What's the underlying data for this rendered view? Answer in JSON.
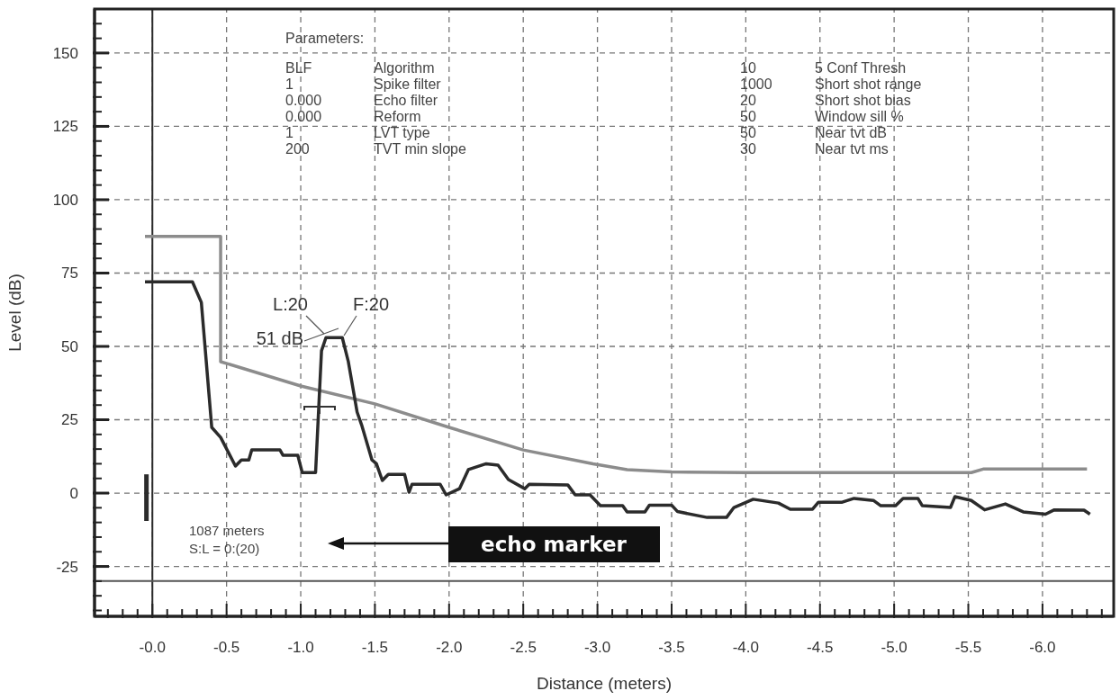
{
  "chart_data": {
    "type": "line",
    "xlabel": "Distance (meters)",
    "ylabel": "Level (dB)",
    "xlim": [
      0.39,
      -6.48
    ],
    "ylim": [
      -42,
      165
    ],
    "xticks": [
      {
        "value": 0.3,
        "label": null
      },
      {
        "value": 0.2,
        "label": null
      },
      {
        "value": 0.1,
        "label": null
      },
      {
        "value": 0,
        "label": "-0.0"
      },
      {
        "value": -0.1,
        "label": null
      },
      {
        "value": -0.2,
        "label": null
      },
      {
        "value": -0.3,
        "label": null
      },
      {
        "value": -0.4,
        "label": null
      },
      -0.5,
      {
        "value": -0.6,
        "label": null
      },
      {
        "value": -0.7,
        "label": null
      },
      {
        "value": -0.8,
        "label": null
      },
      {
        "value": -0.9,
        "label": null
      },
      {
        "value": -1,
        "label": "-1.0"
      },
      {
        "value": -1.1,
        "label": null
      },
      {
        "value": -1.2,
        "label": null
      },
      {
        "value": -1.3,
        "label": null
      },
      {
        "value": -1.4,
        "label": null
      },
      -1.5,
      {
        "value": -1.6,
        "label": null
      },
      {
        "value": -1.7,
        "label": null
      },
      {
        "value": -1.8,
        "label": null
      },
      {
        "value": -1.9,
        "label": null
      },
      {
        "value": -2,
        "label": "-2.0"
      },
      {
        "value": -2.1,
        "label": null
      },
      {
        "value": -2.2,
        "label": null
      },
      {
        "value": -2.3,
        "label": null
      },
      {
        "value": -2.4,
        "label": null
      },
      -2.5,
      {
        "value": -2.6,
        "label": null
      },
      {
        "value": -2.7,
        "label": null
      },
      {
        "value": -2.8,
        "label": null
      },
      {
        "value": -2.9,
        "label": null
      },
      {
        "value": -3,
        "label": "-3.0"
      },
      {
        "value": -3.1,
        "label": null
      },
      {
        "value": -3.2,
        "label": null
      },
      {
        "value": -3.3,
        "label": null
      },
      {
        "value": -3.4,
        "label": null
      },
      -3.5,
      {
        "value": -3.6,
        "label": null
      },
      {
        "value": -3.7,
        "label": null
      },
      {
        "value": -3.8,
        "label": null
      },
      {
        "value": -3.9,
        "label": null
      },
      {
        "value": -4,
        "label": "-4.0"
      },
      {
        "value": -4.1,
        "label": null
      },
      {
        "value": -4.2,
        "label": null
      },
      {
        "value": -4.3,
        "label": null
      },
      {
        "value": -4.4,
        "label": null
      },
      -4.5,
      {
        "value": -4.6,
        "label": null
      },
      {
        "value": -4.7,
        "label": null
      },
      {
        "value": -4.8,
        "label": null
      },
      {
        "value": -4.9,
        "label": null
      },
      {
        "value": -5,
        "label": "-5.0"
      },
      {
        "value": -5.1,
        "label": null
      },
      {
        "value": -5.2,
        "label": null
      },
      {
        "value": -5.3,
        "label": null
      },
      {
        "value": -5.4,
        "label": null
      },
      -5.5,
      {
        "value": -5.6,
        "label": null
      },
      {
        "value": -5.7,
        "label": null
      },
      {
        "value": -5.8,
        "label": null
      },
      {
        "value": -5.9,
        "label": null
      },
      {
        "value": -6,
        "label": "-6.0"
      },
      {
        "value": -6.1,
        "label": null
      },
      {
        "value": -6.2,
        "label": null
      },
      {
        "value": -6.3,
        "label": null
      },
      {
        "value": -6.4,
        "label": null
      }
    ],
    "yticks": [
      {
        "value": -40,
        "label": null
      },
      {
        "value": -35,
        "label": null
      },
      {
        "value": -30,
        "label": null
      },
      -25,
      {
        "value": -20,
        "label": null
      },
      {
        "value": -15,
        "label": null
      },
      {
        "value": -10,
        "label": null
      },
      {
        "value": -5,
        "label": null
      },
      0,
      {
        "value": 5,
        "label": null
      },
      {
        "value": 10,
        "label": null
      },
      {
        "value": 15,
        "label": null
      },
      {
        "value": 20,
        "label": null
      },
      25,
      {
        "value": 30,
        "label": null
      },
      {
        "value": 35,
        "label": null
      },
      {
        "value": 40,
        "label": null
      },
      {
        "value": 45,
        "label": null
      },
      50,
      {
        "value": 55,
        "label": null
      },
      {
        "value": 60,
        "label": null
      },
      {
        "value": 65,
        "label": null
      },
      {
        "value": 70,
        "label": null
      },
      75,
      {
        "value": 80,
        "label": null
      },
      {
        "value": 85,
        "label": null
      },
      {
        "value": 90,
        "label": null
      },
      {
        "value": 95,
        "label": null
      },
      100,
      {
        "value": 105,
        "label": null
      },
      {
        "value": 110,
        "label": null
      },
      {
        "value": 115,
        "label": null
      },
      {
        "value": 120,
        "label": null
      },
      125,
      {
        "value": 130,
        "label": null
      },
      {
        "value": 135,
        "label": null
      },
      {
        "value": 140,
        "label": null
      },
      {
        "value": 145,
        "label": null
      },
      150,
      {
        "value": 155,
        "label": null
      },
      {
        "value": 160,
        "label": null
      }
    ],
    "grid": true,
    "ref_lines": [
      {
        "axis": "x",
        "value": 0,
        "color": "#2a2a2a"
      },
      {
        "axis": "y",
        "value": -30,
        "color": "#555555"
      }
    ],
    "series": [
      {
        "color": "#8c8c8c",
        "x": [
          0.05,
          -0.46,
          -0.46,
          -1.0,
          -1.5,
          -2.0,
          -2.5,
          -2.97,
          -3.2,
          -3.5,
          -4.0,
          -5.52,
          -5.6,
          -6.3
        ],
        "values": [
          87.5,
          87.5,
          44.8,
          36.5,
          30.4,
          22.4,
          14.7,
          10,
          8,
          7.2,
          7,
          7,
          8.2,
          8.2
        ]
      },
      {
        "color": "#2b2b2b",
        "x": [
          0.05,
          -0.27,
          -0.33,
          -0.4,
          -0.46,
          -0.56,
          -0.6,
          -0.65,
          -0.67,
          -0.86,
          -0.88,
          -0.98,
          -1.01,
          -1.1,
          -1.14,
          -1.17,
          -1.28,
          -1.32,
          -1.38,
          -1.41,
          -1.48,
          -1.51,
          -1.55,
          -1.59,
          -1.7,
          -1.73,
          -1.75,
          -1.94,
          -1.98,
          -2.07,
          -2.13,
          -2.25,
          -2.33,
          -2.4,
          -2.51,
          -2.54,
          -2.8,
          -2.85,
          -2.95,
          -3.02,
          -3.17,
          -3.2,
          -3.32,
          -3.35,
          -3.5,
          -3.54,
          -3.74,
          -3.87,
          -3.92,
          -4.05,
          -4.22,
          -4.3,
          -4.45,
          -4.49,
          -4.65,
          -4.73,
          -4.86,
          -4.91,
          -5.01,
          -5.06,
          -5.16,
          -5.19,
          -5.38,
          -5.41,
          -5.52,
          -5.61,
          -5.75,
          -5.87,
          -6.02,
          -6.08,
          -6.28,
          -6.32
        ],
        "values": [
          72,
          72,
          65,
          22.4,
          19,
          9.2,
          11.3,
          11.3,
          14.7,
          14.7,
          12.9,
          12.9,
          7,
          7,
          48.5,
          53,
          53,
          45,
          27.6,
          23.3,
          11.3,
          10,
          4.3,
          6.4,
          6.4,
          0.3,
          3,
          3,
          -0.6,
          1.5,
          8,
          10,
          9.5,
          4.6,
          1.5,
          3,
          2.8,
          -0.6,
          -0.6,
          -4.3,
          -4.3,
          -6.4,
          -6.4,
          -4.1,
          -4.1,
          -6.3,
          -8.3,
          -8.3,
          -4.9,
          -2.1,
          -3.4,
          -5.5,
          -5.5,
          -3.1,
          -3.1,
          -1.8,
          -2.5,
          -4.3,
          -4.3,
          -1.8,
          -1.8,
          -4.3,
          -4.9,
          -1.2,
          -2.5,
          -5.7,
          -3.7,
          -6.4,
          -7.2,
          -5.7,
          -5.8,
          -7.2
        ]
      },
      {
        "color": "#2b2b2b",
        "x": [
          0.04,
          0.04
        ],
        "values": [
          -9.5,
          6.4
        ]
      }
    ],
    "annotations": [
      "Parameters:",
      "BLF",
      "Algorithm",
      "10",
      "5 Conf Thresh",
      "1",
      "Spike filter",
      "1000",
      "Short shot range",
      "0.000",
      "Echo filter",
      "20",
      "Short shot bias",
      "0.000",
      "Reform",
      "50",
      "Window sill %",
      "1",
      "LVT type",
      "50",
      "Near tvt dB",
      "200",
      "TVT min slope",
      "30",
      "Near tvt ms",
      "L:20",
      "F:20",
      "51 dB",
      "1087 meters",
      "S:L = 0:(20)",
      "echo marker"
    ]
  }
}
